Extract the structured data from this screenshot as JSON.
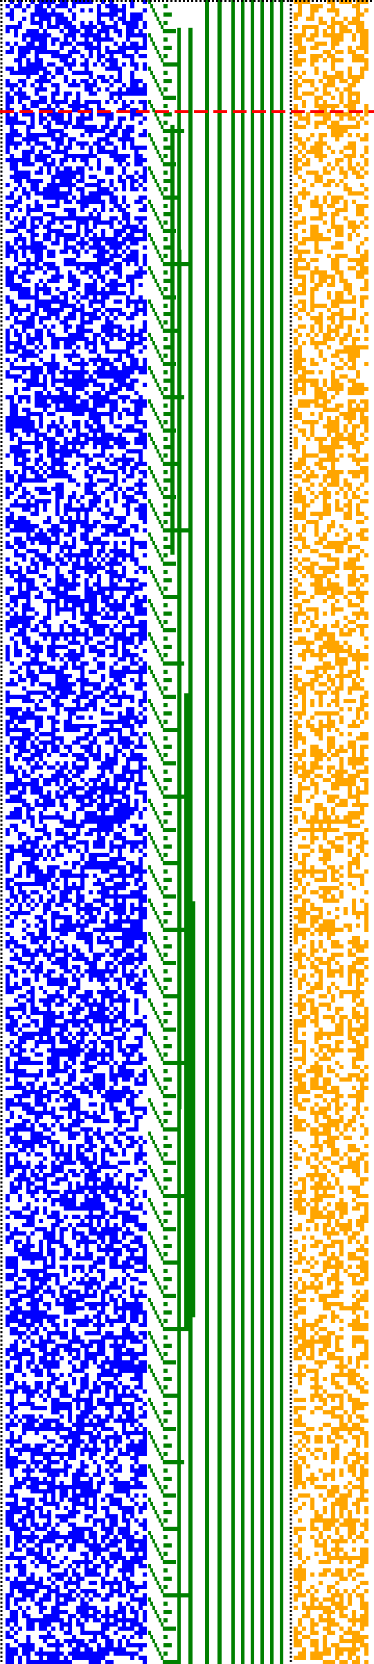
{
  "colors": {
    "background": "#ffffff",
    "bit_panel": "#0000ff",
    "counter_panel": "#008000",
    "hash_panel": "#ffa500",
    "marker_line": "#ff0000",
    "dotted_border": "#000000"
  },
  "panels": [
    {
      "name": "bit-matrix-panel",
      "color_key": "bit_panel",
      "density": 0.55
    },
    {
      "name": "counter-staircase-panel",
      "color_key": "counter_panel"
    },
    {
      "name": "hash-matrix-panel",
      "color_key": "hash_panel",
      "density": 0.5
    }
  ],
  "marker": {
    "style": "dashed",
    "color_key": "marker_line"
  },
  "counter": {
    "steps_per_cycle": 16
  }
}
